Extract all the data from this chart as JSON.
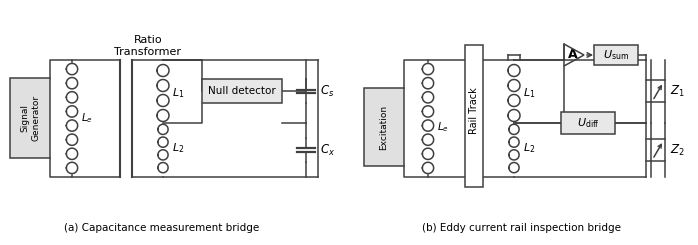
{
  "fig_width": 6.98,
  "fig_height": 2.45,
  "dpi": 100,
  "bg": "#ffffff",
  "lc": "#404040",
  "lw": 1.1,
  "caption_a": "(a) Capacitance measurement bridge",
  "caption_b": "(b) Eddy current rail inspection bridge",
  "ratio_transformer": "Ratio\nTransformer",
  "signal_generator": "Signal\nGenerator",
  "excitation": "Excitation",
  "null_detector": "Null detector",
  "rail_track": "Rail Track",
  "Le": "$L_e$",
  "L1": "$L_1$",
  "L2": "$L_2$",
  "Cs": "$C_s$",
  "Cx": "$C_x$",
  "A": "A",
  "Usum": "$U_{\\mathrm{sum}}$",
  "Udiff": "$U_{\\mathrm{diff}}$",
  "Z1": "$Z_1$",
  "Z2": "$Z_2$"
}
